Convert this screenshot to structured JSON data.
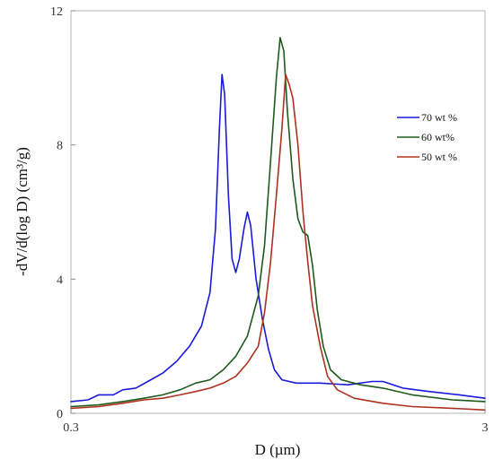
{
  "chart_data": {
    "type": "line",
    "title": "",
    "xlabel": "D (µm)",
    "ylabel": "-dV/d(log D) (cm³/g)",
    "xscale": "log",
    "xlim": [
      0.3,
      3
    ],
    "ylim": [
      0,
      12
    ],
    "x_ticks": [
      {
        "value": 0.3,
        "label": "0.3"
      },
      {
        "value": 3,
        "label": "3"
      }
    ],
    "y_ticks": [
      {
        "value": 0,
        "label": "0"
      },
      {
        "value": 4,
        "label": "4"
      },
      {
        "value": 8,
        "label": "8"
      },
      {
        "value": 12,
        "label": "12"
      }
    ],
    "grid": false,
    "legend_position": "right",
    "series": [
      {
        "name": "70 wt %",
        "color": "#1a1adb",
        "points": [
          [
            0.3,
            0.35
          ],
          [
            0.33,
            0.4
          ],
          [
            0.35,
            0.55
          ],
          [
            0.38,
            0.55
          ],
          [
            0.4,
            0.7
          ],
          [
            0.43,
            0.75
          ],
          [
            0.46,
            0.95
          ],
          [
            0.5,
            1.2
          ],
          [
            0.54,
            1.55
          ],
          [
            0.58,
            2.0
          ],
          [
            0.62,
            2.6
          ],
          [
            0.65,
            3.6
          ],
          [
            0.67,
            5.5
          ],
          [
            0.685,
            8.5
          ],
          [
            0.695,
            10.1
          ],
          [
            0.705,
            9.5
          ],
          [
            0.72,
            6.5
          ],
          [
            0.735,
            4.6
          ],
          [
            0.75,
            4.2
          ],
          [
            0.765,
            4.6
          ],
          [
            0.785,
            5.5
          ],
          [
            0.8,
            6.0
          ],
          [
            0.815,
            5.6
          ],
          [
            0.84,
            4.0
          ],
          [
            0.87,
            2.8
          ],
          [
            0.9,
            1.9
          ],
          [
            0.93,
            1.3
          ],
          [
            0.97,
            1.0
          ],
          [
            1.05,
            0.9
          ],
          [
            1.2,
            0.9
          ],
          [
            1.4,
            0.85
          ],
          [
            1.6,
            0.95
          ],
          [
            1.7,
            0.95
          ],
          [
            1.9,
            0.75
          ],
          [
            2.2,
            0.65
          ],
          [
            2.6,
            0.55
          ],
          [
            3.0,
            0.45
          ]
        ]
      },
      {
        "name": "60  wt%",
        "color": "#1e5a1e",
        "points": [
          [
            0.3,
            0.2
          ],
          [
            0.35,
            0.25
          ],
          [
            0.4,
            0.35
          ],
          [
            0.45,
            0.45
          ],
          [
            0.5,
            0.55
          ],
          [
            0.55,
            0.7
          ],
          [
            0.6,
            0.9
          ],
          [
            0.65,
            1.0
          ],
          [
            0.7,
            1.3
          ],
          [
            0.75,
            1.7
          ],
          [
            0.8,
            2.3
          ],
          [
            0.85,
            3.5
          ],
          [
            0.88,
            5.0
          ],
          [
            0.91,
            7.5
          ],
          [
            0.94,
            10.0
          ],
          [
            0.96,
            11.2
          ],
          [
            0.98,
            10.8
          ],
          [
            1.0,
            9.0
          ],
          [
            1.03,
            7.0
          ],
          [
            1.06,
            5.8
          ],
          [
            1.09,
            5.4
          ],
          [
            1.12,
            5.3
          ],
          [
            1.15,
            4.4
          ],
          [
            1.18,
            3.1
          ],
          [
            1.22,
            2.0
          ],
          [
            1.27,
            1.3
          ],
          [
            1.35,
            1.0
          ],
          [
            1.5,
            0.85
          ],
          [
            1.7,
            0.75
          ],
          [
            2.0,
            0.55
          ],
          [
            2.5,
            0.4
          ],
          [
            3.0,
            0.35
          ]
        ]
      },
      {
        "name": "50  wt %",
        "color": "#b03020",
        "points": [
          [
            0.3,
            0.15
          ],
          [
            0.35,
            0.2
          ],
          [
            0.4,
            0.3
          ],
          [
            0.45,
            0.4
          ],
          [
            0.5,
            0.45
          ],
          [
            0.55,
            0.55
          ],
          [
            0.6,
            0.65
          ],
          [
            0.65,
            0.75
          ],
          [
            0.7,
            0.9
          ],
          [
            0.75,
            1.1
          ],
          [
            0.8,
            1.5
          ],
          [
            0.85,
            2.0
          ],
          [
            0.88,
            3.0
          ],
          [
            0.91,
            4.5
          ],
          [
            0.94,
            6.5
          ],
          [
            0.97,
            8.5
          ],
          [
            0.99,
            10.1
          ],
          [
            1.01,
            9.8
          ],
          [
            1.03,
            9.4
          ],
          [
            1.06,
            8.0
          ],
          [
            1.09,
            6.0
          ],
          [
            1.12,
            4.5
          ],
          [
            1.15,
            3.2
          ],
          [
            1.2,
            2.0
          ],
          [
            1.25,
            1.1
          ],
          [
            1.32,
            0.7
          ],
          [
            1.45,
            0.45
          ],
          [
            1.7,
            0.3
          ],
          [
            2.0,
            0.2
          ],
          [
            2.5,
            0.15
          ],
          [
            3.0,
            0.1
          ]
        ]
      }
    ]
  }
}
